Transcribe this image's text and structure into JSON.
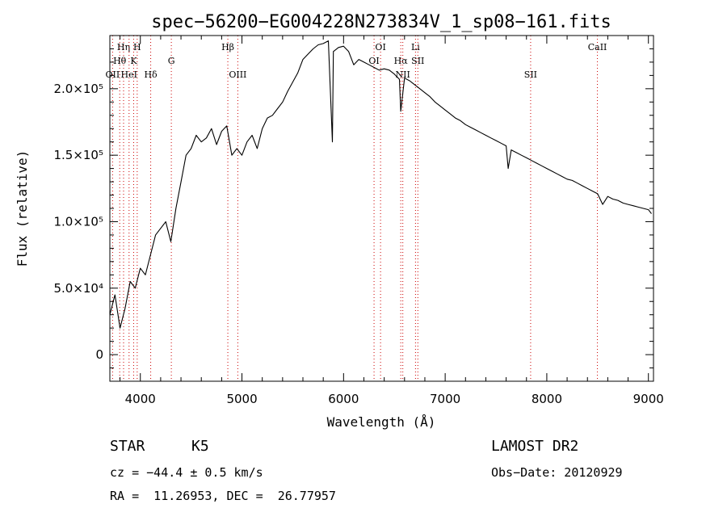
{
  "chart_data": {
    "type": "line",
    "title": "spec−56200−EG004228N273834V_1_sp08−161.fits",
    "xlabel": "Wavelength (Å)",
    "ylabel": "Flux (relative)",
    "xlim": [
      3700,
      9050
    ],
    "ylim": [
      -20000,
      240000
    ],
    "x_ticks": [
      {
        "value": 4000,
        "label": "4000"
      },
      {
        "value": 5000,
        "label": "5000"
      },
      {
        "value": 6000,
        "label": "6000"
      },
      {
        "value": 7000,
        "label": "7000"
      },
      {
        "value": 8000,
        "label": "8000"
      },
      {
        "value": 9000,
        "label": "9000"
      }
    ],
    "y_ticks": [
      {
        "value": 0,
        "label": "0"
      },
      {
        "value": 50000,
        "label": "5.0×10⁴"
      },
      {
        "value": 100000,
        "label": "1.0×10⁵"
      },
      {
        "value": 150000,
        "label": "1.5×10⁵"
      },
      {
        "value": 200000,
        "label": "2.0×10⁵"
      }
    ],
    "series": [
      {
        "x": [
          3700,
          3750,
          3800,
          3850,
          3900,
          3950,
          4000,
          4050,
          4100,
          4150,
          4200,
          4250,
          4300,
          4350,
          4400,
          4450,
          4500,
          4550,
          4600,
          4650,
          4700,
          4750,
          4800,
          4850,
          4900,
          4950,
          5000,
          5050,
          5100,
          5150,
          5200,
          5250,
          5300,
          5350,
          5400,
          5450,
          5500,
          5550,
          5600,
          5650,
          5700,
          5750,
          5800,
          5850,
          5890,
          5900,
          5950,
          6000,
          6050,
          6100,
          6150,
          6200,
          6250,
          6300,
          6350,
          6400,
          6450,
          6500,
          6550,
          6563,
          6600,
          6650,
          6700,
          6750,
          6800,
          6850,
          6900,
          6950,
          7000,
          7050,
          7100,
          7150,
          7200,
          7250,
          7300,
          7350,
          7400,
          7450,
          7500,
          7550,
          7600,
          7620,
          7650,
          7700,
          7750,
          7800,
          7850,
          7900,
          7950,
          8000,
          8050,
          8100,
          8150,
          8200,
          8250,
          8300,
          8350,
          8400,
          8450,
          8500,
          8550,
          8600,
          8650,
          8700,
          8750,
          8800,
          8850,
          8900,
          8950,
          9000,
          9030
        ],
        "y": [
          30000,
          45000,
          20000,
          35000,
          55000,
          50000,
          65000,
          60000,
          75000,
          90000,
          95000,
          100000,
          85000,
          110000,
          130000,
          150000,
          155000,
          165000,
          160000,
          163000,
          170000,
          158000,
          168000,
          172000,
          150000,
          155000,
          150000,
          160000,
          165000,
          155000,
          170000,
          178000,
          180000,
          185000,
          190000,
          198000,
          205000,
          212000,
          222000,
          226000,
          230000,
          233000,
          234000,
          236000,
          160000,
          228000,
          231000,
          232000,
          228000,
          218000,
          222000,
          220000,
          218000,
          216000,
          214000,
          215000,
          214000,
          211000,
          207000,
          183000,
          208000,
          206000,
          203000,
          200000,
          197000,
          194000,
          190000,
          187000,
          184000,
          181000,
          178000,
          176000,
          173000,
          171000,
          169000,
          167000,
          165000,
          163000,
          161000,
          159000,
          157000,
          140000,
          154000,
          152000,
          150000,
          148000,
          146000,
          144000,
          142000,
          140000,
          138000,
          136000,
          134000,
          132000,
          131000,
          129000,
          127000,
          125000,
          123000,
          121000,
          113000,
          119000,
          117000,
          116000,
          114000,
          113000,
          112000,
          111000,
          110000,
          109000,
          106000
        ]
      }
    ],
    "lines": [
      {
        "label": "Hη",
        "x": 3835,
        "row": 0,
        "color": "#000000"
      },
      {
        "label": "H",
        "x": 3969,
        "row": 0,
        "color": "#000000"
      },
      {
        "label": "Hθ",
        "x": 3797,
        "row": 1,
        "color": "#000000"
      },
      {
        "label": "K",
        "x": 3934,
        "row": 1,
        "color": "#000000"
      },
      {
        "label": "G",
        "x": 4305,
        "row": 1,
        "color": "#000000"
      },
      {
        "label": "OII",
        "x": 3727,
        "row": 2,
        "color": "#000000"
      },
      {
        "label": "HeI",
        "x": 3889,
        "row": 2,
        "color": "#000000"
      },
      {
        "label": "Hδ",
        "x": 4102,
        "row": 2,
        "color": "#000000"
      },
      {
        "label": "Hβ",
        "x": 4861,
        "row": 0,
        "color": "#000000"
      },
      {
        "label": "OIII",
        "x": 4959,
        "row": 2,
        "color": "#000000"
      },
      {
        "label": "OI",
        "x": 6364,
        "row": 0,
        "color": "#000000"
      },
      {
        "label": "OI",
        "x": 6300,
        "row": 1,
        "color": "#000000"
      },
      {
        "label": "Li",
        "x": 6708,
        "row": 0,
        "color": "#000000"
      },
      {
        "label": "Hα",
        "x": 6563,
        "row": 1,
        "color": "#000000"
      },
      {
        "label": "SII",
        "x": 6731,
        "row": 1,
        "color": "#000000"
      },
      {
        "label": "NII",
        "x": 6583,
        "row": 2,
        "color": "#000000"
      },
      {
        "label": "SII",
        "x": 7841,
        "row": 2,
        "color": "#000000"
      },
      {
        "label": "CaII",
        "x": 8498,
        "row": 0,
        "color": "#000000"
      }
    ],
    "line_color": "#cc0000",
    "spectrum_color": "#000000",
    "grid": false
  },
  "info": {
    "class": "STAR",
    "subclass": "K5",
    "cz": "cz = −44.4 ± 0.5 km/s",
    "radec": "RA =  11.26953, DEC =  26.77957",
    "survey": "LAMOST DR2",
    "obsdate": "Obs−Date: 20120929"
  }
}
